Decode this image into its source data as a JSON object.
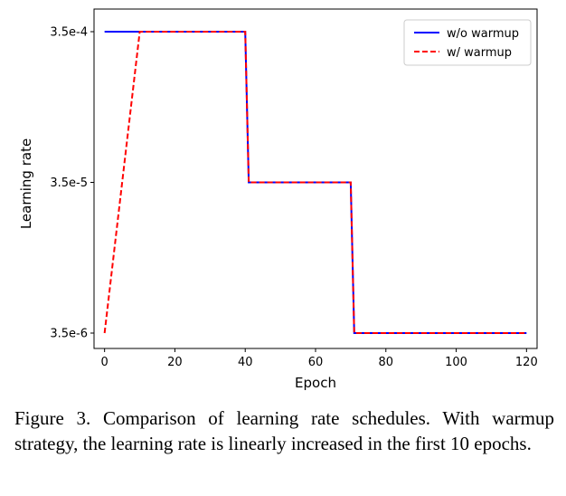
{
  "chart_data": {
    "type": "line",
    "title": "",
    "xlabel": "Epoch",
    "ylabel": "Learning rate",
    "xlim": [
      -3,
      123
    ],
    "x_ticks": [
      0,
      20,
      40,
      60,
      80,
      100,
      120
    ],
    "y_tick_values": [
      3.5e-06,
      3.5e-05,
      0.00035
    ],
    "y_tick_labels": [
      "3.5e-6",
      "3.5e-5",
      "3.5e-4"
    ],
    "grid": false,
    "legend_position": "top-right",
    "series": [
      {
        "name": "w/o warmup",
        "color": "#0000ff",
        "style": "solid",
        "x": [
          0,
          40,
          40,
          41,
          70,
          70,
          71,
          120
        ],
        "y": [
          0.00035,
          0.00035,
          0.00035,
          3.5e-05,
          3.5e-05,
          3.5e-05,
          3.5e-06,
          3.5e-06
        ]
      },
      {
        "name": "w/ warmup",
        "color": "#ff0000",
        "style": "dashed",
        "x": [
          0,
          10,
          40,
          40,
          41,
          70,
          70,
          71,
          120
        ],
        "y": [
          3.5e-06,
          0.00035,
          0.00035,
          0.00035,
          3.5e-05,
          3.5e-05,
          3.5e-05,
          3.5e-06,
          3.5e-06
        ]
      }
    ]
  },
  "caption": "Figure 3. Comparison of learning rate schedules. With warmup strategy, the learning rate is linearly increased in the first 10 epochs."
}
